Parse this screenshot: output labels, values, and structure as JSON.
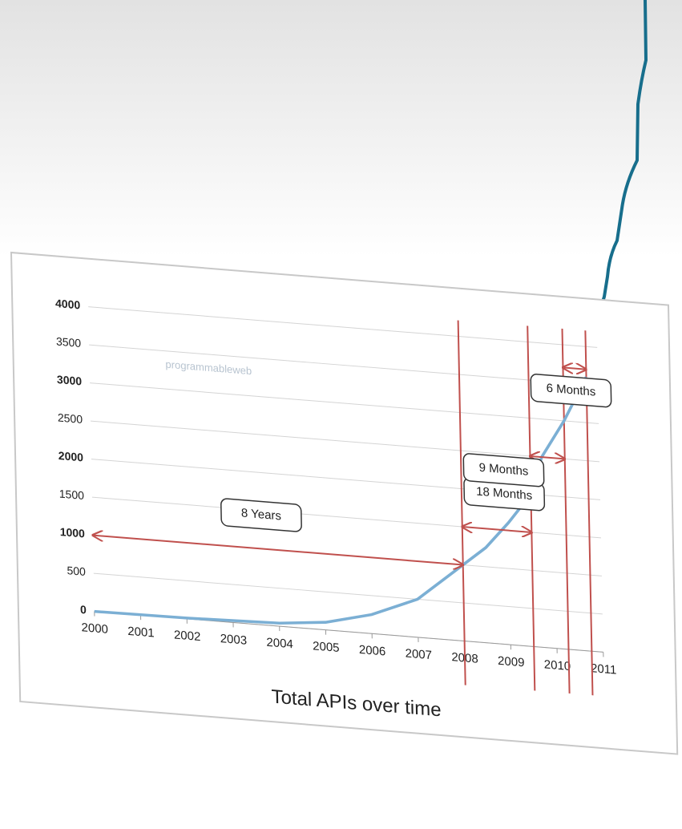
{
  "chart_data": {
    "type": "line",
    "xlabel": "Total APIs over time",
    "watermark": "programmableweb",
    "x": [
      2000,
      2002,
      2004,
      2005,
      2006,
      2007,
      2008,
      2008.5,
      2009,
      2009.5,
      2009.75,
      2010.25,
      2010.75
    ],
    "values": [
      0,
      10,
      40,
      100,
      250,
      500,
      1000,
      1250,
      1600,
      2000,
      2500,
      3000,
      3600
    ],
    "color": "#7bafd4",
    "xlim": [
      2000,
      2011
    ],
    "xticks": [
      2000,
      2001,
      2002,
      2003,
      2004,
      2005,
      2006,
      2007,
      2008,
      2009,
      2010,
      2011
    ],
    "ylim": [
      0,
      4000
    ],
    "yticks": [
      0,
      500,
      1000,
      1500,
      2000,
      2500,
      3000,
      3500,
      4000
    ],
    "grid": true,
    "markers": [
      2008,
      2009.5,
      2010.25,
      2010.75
    ],
    "marker_color": "#c0504d",
    "annotations": [
      {
        "text": "8 Years",
        "x1": 2000,
        "x2": 2008,
        "y": 1000
      },
      {
        "text": "18 Months",
        "x1": 2008,
        "x2": 2009.5,
        "y": 1500
      },
      {
        "text": "9 Months",
        "x1": 2009.5,
        "x2": 2010.25,
        "y": 2500
      },
      {
        "text": "6 Months",
        "x1": 2010.25,
        "x2": 2010.75,
        "y": 3700
      }
    ]
  }
}
